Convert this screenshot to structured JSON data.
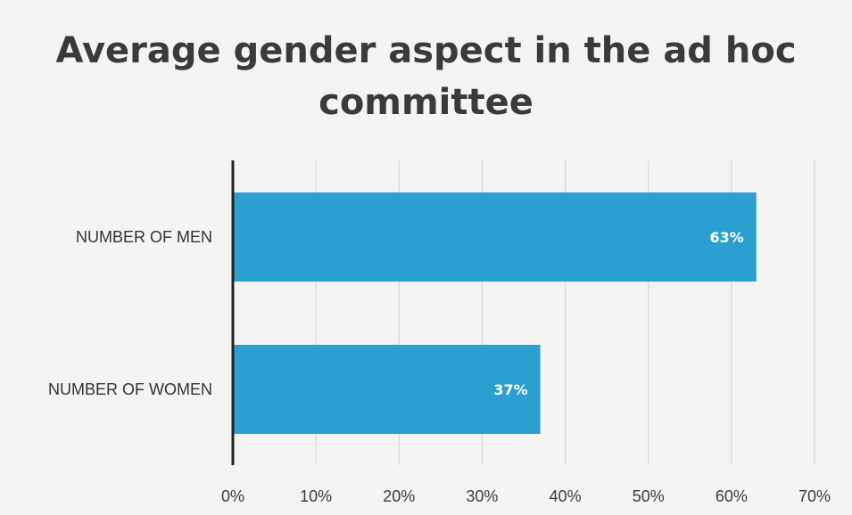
{
  "chart_data": {
    "type": "bar",
    "orientation": "horizontal",
    "title_lines": [
      "Average gender aspect in the ad hoc",
      "committee"
    ],
    "categories": [
      "NUMBER OF MEN",
      "NUMBER OF WOMEN"
    ],
    "values": [
      63,
      37
    ],
    "data_labels": [
      "63%",
      "37%"
    ],
    "xlim": [
      0,
      70
    ],
    "x_ticks": [
      0,
      10,
      20,
      30,
      40,
      50,
      60,
      70
    ],
    "x_tick_labels": [
      "0%",
      "10%",
      "20%",
      "30%",
      "40%",
      "50%",
      "60%",
      "70%"
    ],
    "grid": "vertical",
    "legend": "none",
    "bar_color": "#2a9fd0",
    "label_color": "#ffffff"
  }
}
